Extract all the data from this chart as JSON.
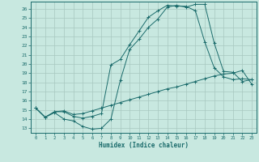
{
  "xlabel": "Humidex (Indice chaleur)",
  "xlim": [
    -0.5,
    23.5
  ],
  "ylim": [
    12.5,
    26.8
  ],
  "yticks": [
    13,
    14,
    15,
    16,
    17,
    18,
    19,
    20,
    21,
    22,
    23,
    24,
    25,
    26
  ],
  "xticks": [
    0,
    1,
    2,
    3,
    4,
    5,
    6,
    7,
    8,
    9,
    10,
    11,
    12,
    13,
    14,
    15,
    16,
    17,
    18,
    19,
    20,
    21,
    22,
    23
  ],
  "bg_color": "#c8e8e0",
  "line_color": "#1a6b6b",
  "grid_color": "#a8c8c0",
  "line1_y": [
    15.2,
    14.2,
    14.7,
    14.0,
    13.8,
    13.2,
    12.9,
    13.0,
    14.0,
    18.2,
    21.6,
    22.7,
    24.0,
    24.9,
    26.2,
    26.4,
    26.2,
    26.5,
    26.5,
    22.3,
    19.2,
    19.1,
    18.1,
    18.3
  ],
  "line2_y": [
    15.2,
    14.2,
    14.8,
    14.8,
    14.3,
    14.1,
    14.3,
    14.6,
    19.9,
    20.5,
    22.1,
    23.6,
    25.1,
    25.8,
    26.4,
    26.3,
    26.3,
    25.8,
    22.4,
    19.6,
    18.6,
    18.3,
    18.4,
    18.3
  ],
  "line3_y": [
    15.2,
    14.2,
    14.8,
    14.9,
    14.5,
    14.6,
    14.9,
    15.2,
    15.5,
    15.8,
    16.1,
    16.4,
    16.7,
    17.0,
    17.3,
    17.5,
    17.8,
    18.1,
    18.4,
    18.7,
    18.9,
    19.0,
    19.3,
    17.8
  ]
}
